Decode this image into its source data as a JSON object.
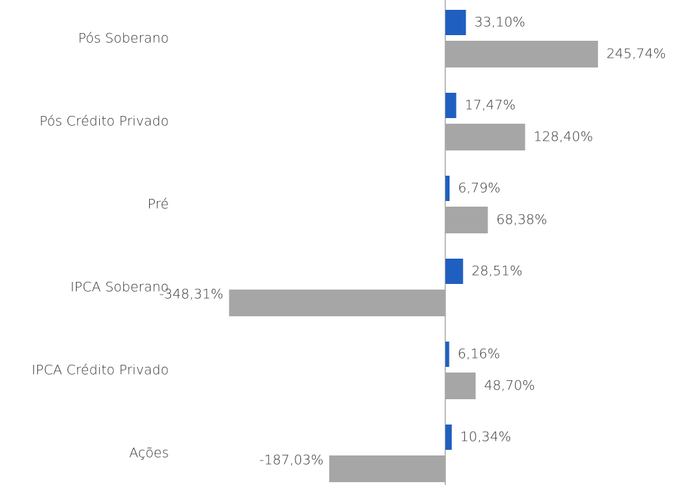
{
  "chart_data": {
    "type": "hbar",
    "categories": [
      "Pós Soberano",
      "Pós Crédito Privado",
      "Pré",
      "IPCA Soberano",
      "IPCA Crédito Privado",
      "Ações"
    ],
    "series": [
      {
        "color": "#1f5fbf",
        "values": [
          33.1,
          17.47,
          6.79,
          28.51,
          6.16,
          10.34
        ],
        "value_labels": [
          "33,10%",
          "17,47%",
          "6,79%",
          "28,51%",
          "6,16%",
          "10,34%"
        ]
      },
      {
        "color": "#a6a6a6",
        "values": [
          245.74,
          128.4,
          68.38,
          -348.31,
          48.7,
          -187.03
        ],
        "value_labels": [
          "245,74%",
          "128,40%",
          "68,38%",
          "-348,31%",
          "48,70%",
          "-187,03%"
        ]
      }
    ],
    "xlim": [
      -400,
      300
    ]
  }
}
